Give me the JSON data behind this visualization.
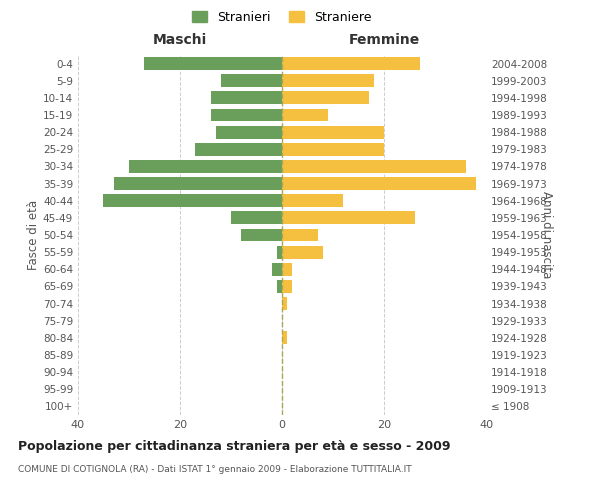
{
  "age_groups": [
    "100+",
    "95-99",
    "90-94",
    "85-89",
    "80-84",
    "75-79",
    "70-74",
    "65-69",
    "60-64",
    "55-59",
    "50-54",
    "45-49",
    "40-44",
    "35-39",
    "30-34",
    "25-29",
    "20-24",
    "15-19",
    "10-14",
    "5-9",
    "0-4"
  ],
  "birth_years": [
    "≤ 1908",
    "1909-1913",
    "1914-1918",
    "1919-1923",
    "1924-1928",
    "1929-1933",
    "1934-1938",
    "1939-1943",
    "1944-1948",
    "1949-1953",
    "1954-1958",
    "1959-1963",
    "1964-1968",
    "1969-1973",
    "1974-1978",
    "1979-1983",
    "1984-1988",
    "1989-1993",
    "1994-1998",
    "1999-2003",
    "2004-2008"
  ],
  "maschi": [
    0,
    0,
    0,
    0,
    0,
    0,
    0,
    1,
    2,
    1,
    8,
    10,
    35,
    33,
    30,
    17,
    13,
    14,
    14,
    12,
    27
  ],
  "femmine": [
    0,
    0,
    0,
    0,
    1,
    0,
    1,
    2,
    2,
    8,
    7,
    26,
    12,
    38,
    36,
    20,
    20,
    9,
    17,
    18,
    27
  ],
  "maschi_color": "#6a9e5b",
  "femmine_color": "#f5c040",
  "background_color": "#ffffff",
  "grid_color": "#cccccc",
  "title": "Popolazione per cittadinanza straniera per età e sesso - 2009",
  "subtitle": "COMUNE DI COTIGNOLA (RA) - Dati ISTAT 1° gennaio 2009 - Elaborazione TUTTITALIA.IT",
  "xlabel_left": "Maschi",
  "xlabel_right": "Femmine",
  "ylabel_left": "Fasce di età",
  "ylabel_right": "Anni di nascita",
  "legend_maschi": "Stranieri",
  "legend_femmine": "Straniere",
  "xlim": 40,
  "bar_height": 0.75
}
